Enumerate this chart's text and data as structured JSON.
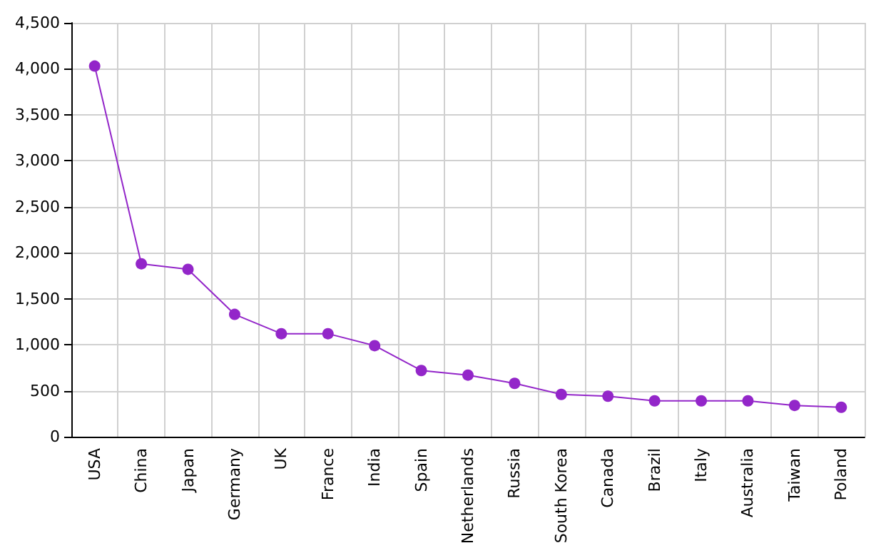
{
  "chart_data": {
    "type": "line",
    "categories": [
      "USA",
      "China",
      "Japan",
      "Germany",
      "UK",
      "France",
      "India",
      "Spain",
      "Netherlands",
      "Russia",
      "South Korea",
      "Canada",
      "Brazil",
      "Italy",
      "Australia",
      "Taiwan",
      "Poland"
    ],
    "values": [
      4030,
      1880,
      1820,
      1330,
      1120,
      1120,
      990,
      720,
      670,
      580,
      460,
      440,
      390,
      390,
      390,
      340,
      320
    ],
    "color": "#9326c9",
    "marker": "circle",
    "line_style": "solid",
    "grid": true,
    "ylim": [
      0,
      4500
    ],
    "yticks": [
      {
        "value": 0,
        "label": "0"
      },
      {
        "value": 500,
        "label": "500"
      },
      {
        "value": 1000,
        "label": "1,000"
      },
      {
        "value": 1500,
        "label": "1,500"
      },
      {
        "value": 2000,
        "label": "2,000"
      },
      {
        "value": 2500,
        "label": "2,500"
      },
      {
        "value": 3000,
        "label": "3,000"
      },
      {
        "value": 3500,
        "label": "3,500"
      },
      {
        "value": 4000,
        "label": "4,000"
      },
      {
        "value": 4500,
        "label": "4,500"
      }
    ]
  }
}
